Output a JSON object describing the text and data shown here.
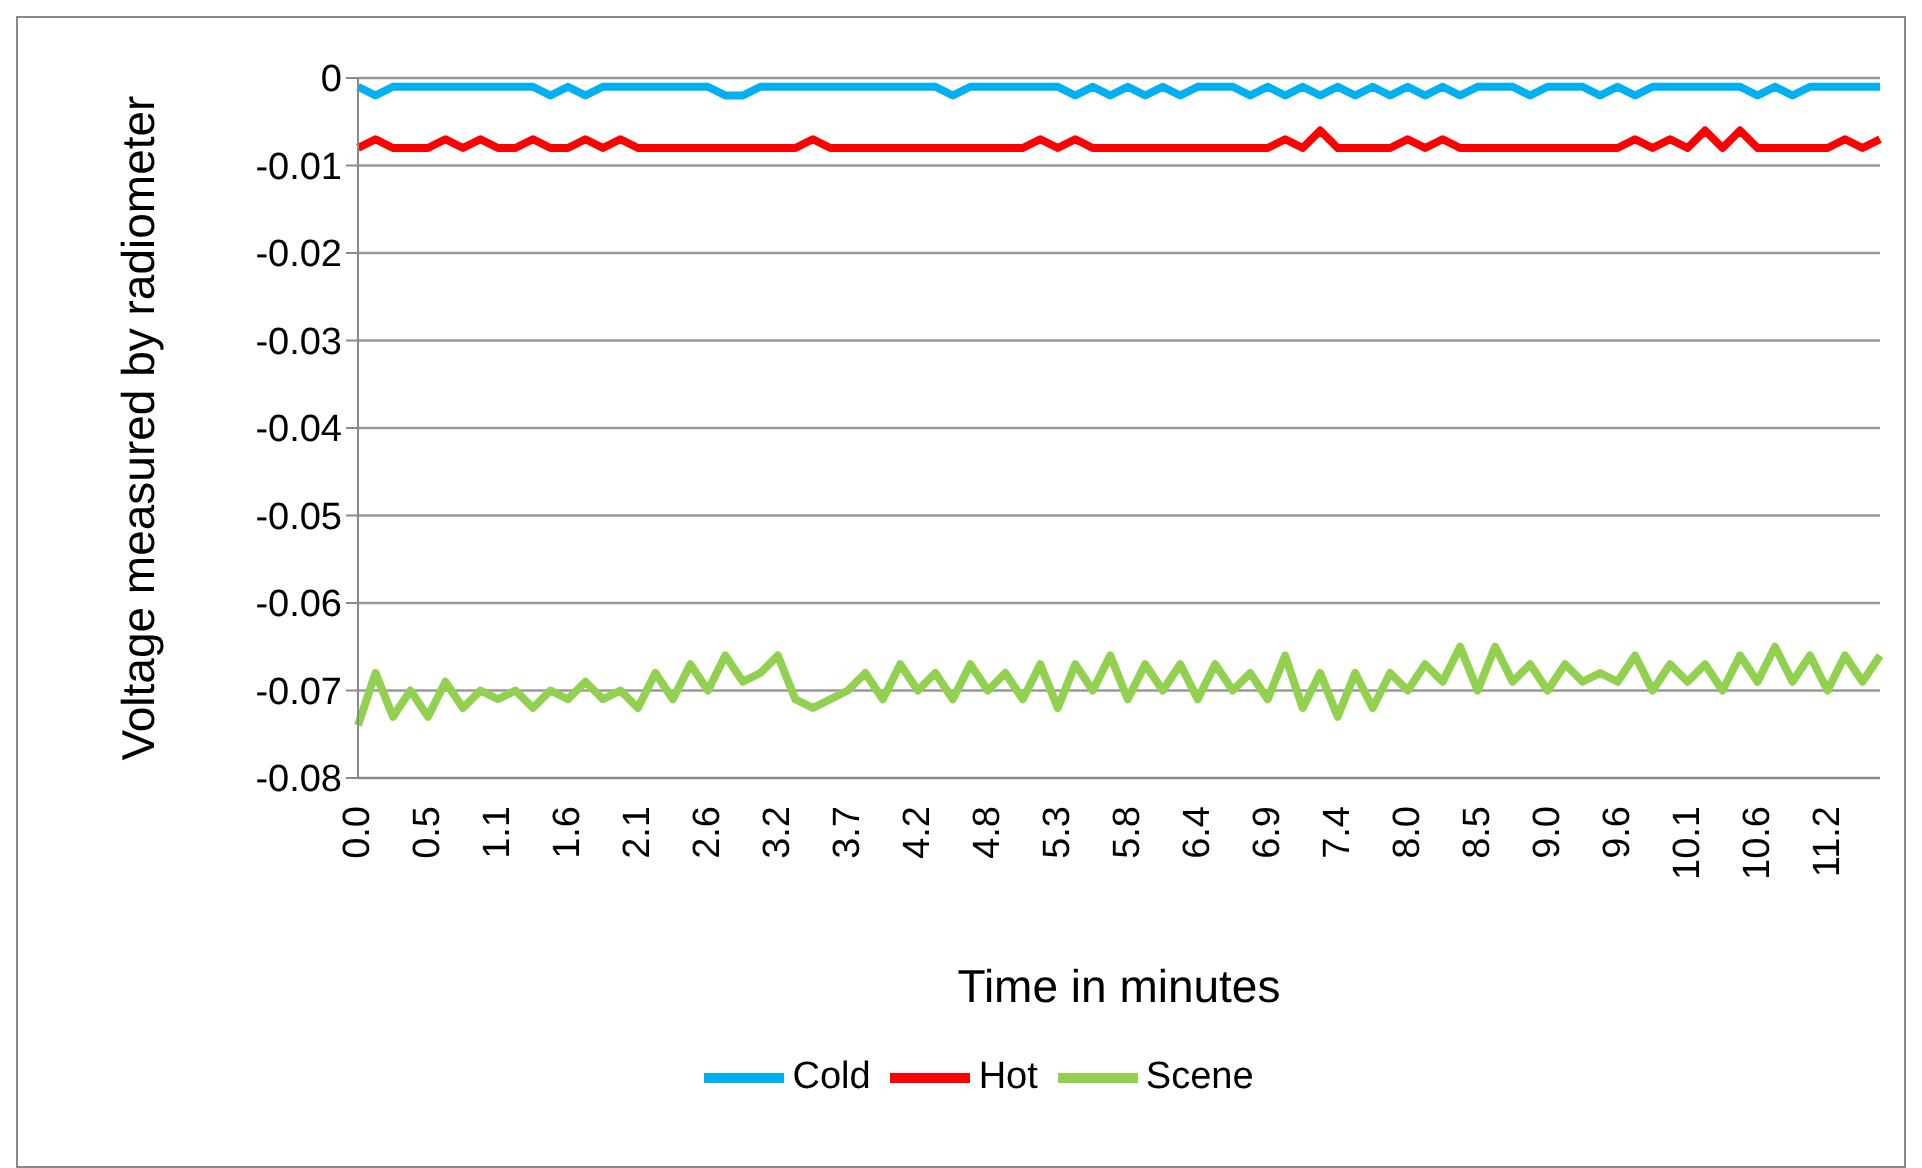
{
  "chart_data": {
    "type": "line",
    "xlabel": "Time in minutes",
    "ylabel": "Voltage measured by radiometer",
    "categories": [
      "0.0",
      null,
      null,
      null,
      "0.5",
      null,
      null,
      null,
      "1.1",
      null,
      null,
      null,
      "1.6",
      null,
      null,
      null,
      "2.1",
      null,
      null,
      null,
      "2.6",
      null,
      null,
      null,
      "3.2",
      null,
      null,
      null,
      "3.7",
      null,
      null,
      null,
      "4.2",
      null,
      null,
      null,
      "4.8",
      null,
      null,
      null,
      "5.3",
      null,
      null,
      null,
      "5.8",
      null,
      null,
      null,
      "6.4",
      null,
      null,
      null,
      "6.9",
      null,
      null,
      null,
      "7.4",
      null,
      null,
      null,
      "8.0",
      null,
      null,
      null,
      "8.5",
      null,
      null,
      null,
      "9.0",
      null,
      null,
      null,
      "9.6",
      null,
      null,
      null,
      "10.1",
      null,
      null,
      null,
      "10.6",
      null,
      null,
      null,
      "11.2",
      null,
      null,
      null
    ],
    "series": [
      {
        "name": "Hot",
        "color": "#ff0000",
        "values": [
          -0.008,
          -0.007,
          -0.008,
          -0.008,
          -0.008,
          -0.007,
          -0.008,
          -0.007,
          -0.008,
          -0.008,
          -0.007,
          -0.008,
          -0.008,
          -0.007,
          -0.008,
          -0.007,
          -0.008,
          -0.008,
          -0.008,
          -0.008,
          -0.008,
          -0.008,
          -0.008,
          -0.008,
          -0.008,
          -0.008,
          -0.007,
          -0.008,
          -0.008,
          -0.008,
          -0.008,
          -0.008,
          -0.008,
          -0.008,
          -0.008,
          -0.008,
          -0.008,
          -0.008,
          -0.008,
          -0.007,
          -0.008,
          -0.007,
          -0.008,
          -0.008,
          -0.008,
          -0.008,
          -0.008,
          -0.008,
          -0.008,
          -0.008,
          -0.008,
          -0.008,
          -0.008,
          -0.007,
          -0.008,
          -0.006,
          -0.008,
          -0.008,
          -0.008,
          -0.008,
          -0.007,
          -0.008,
          -0.007,
          -0.008,
          -0.008,
          -0.008,
          -0.008,
          -0.008,
          -0.008,
          -0.008,
          -0.008,
          -0.008,
          -0.008,
          -0.007,
          -0.008,
          -0.007,
          -0.008,
          -0.006,
          -0.008,
          -0.006,
          -0.008,
          -0.008,
          -0.008,
          -0.008,
          -0.008,
          -0.007,
          -0.008,
          -0.007
        ]
      },
      {
        "name": "Cold",
        "color": "#00b0f0",
        "values": [
          -0.001,
          -0.002,
          -0.001,
          -0.001,
          -0.001,
          -0.001,
          -0.001,
          -0.001,
          -0.001,
          -0.001,
          -0.001,
          -0.002,
          -0.001,
          -0.002,
          -0.001,
          -0.001,
          -0.001,
          -0.001,
          -0.001,
          -0.001,
          -0.001,
          -0.002,
          -0.002,
          -0.001,
          -0.001,
          -0.001,
          -0.001,
          -0.001,
          -0.001,
          -0.001,
          -0.001,
          -0.001,
          -0.001,
          -0.001,
          -0.002,
          -0.001,
          -0.001,
          -0.001,
          -0.001,
          -0.001,
          -0.001,
          -0.002,
          -0.001,
          -0.002,
          -0.001,
          -0.002,
          -0.001,
          -0.002,
          -0.001,
          -0.001,
          -0.001,
          -0.002,
          -0.001,
          -0.002,
          -0.001,
          -0.002,
          -0.001,
          -0.002,
          -0.001,
          -0.002,
          -0.001,
          -0.002,
          -0.001,
          -0.002,
          -0.001,
          -0.001,
          -0.001,
          -0.002,
          -0.001,
          -0.001,
          -0.001,
          -0.002,
          -0.001,
          -0.002,
          -0.001,
          -0.001,
          -0.001,
          -0.001,
          -0.001,
          -0.001,
          -0.002,
          -0.001,
          -0.002,
          -0.001,
          -0.001,
          -0.001,
          -0.001,
          -0.001
        ]
      },
      {
        "name": "Scene",
        "color": "#92d050",
        "values": [
          -0.074,
          -0.068,
          -0.073,
          -0.07,
          -0.073,
          -0.069,
          -0.072,
          -0.07,
          -0.071,
          -0.07,
          -0.072,
          -0.07,
          -0.071,
          -0.069,
          -0.071,
          -0.07,
          -0.072,
          -0.068,
          -0.071,
          -0.067,
          -0.07,
          -0.066,
          -0.069,
          -0.068,
          -0.066,
          -0.071,
          -0.072,
          -0.071,
          -0.07,
          -0.068,
          -0.071,
          -0.067,
          -0.07,
          -0.068,
          -0.071,
          -0.067,
          -0.07,
          -0.068,
          -0.071,
          -0.067,
          -0.072,
          -0.067,
          -0.07,
          -0.066,
          -0.071,
          -0.067,
          -0.07,
          -0.067,
          -0.071,
          -0.067,
          -0.07,
          -0.068,
          -0.071,
          -0.066,
          -0.072,
          -0.068,
          -0.073,
          -0.068,
          -0.072,
          -0.068,
          -0.07,
          -0.067,
          -0.069,
          -0.065,
          -0.07,
          -0.065,
          -0.069,
          -0.067,
          -0.07,
          -0.067,
          -0.069,
          -0.068,
          -0.069,
          -0.066,
          -0.07,
          -0.067,
          -0.069,
          -0.067,
          -0.07,
          -0.066,
          -0.069,
          -0.065,
          -0.069,
          -0.066,
          -0.07,
          -0.066,
          -0.069,
          -0.066
        ]
      }
    ],
    "ylim": [
      -0.08,
      0
    ],
    "yticks": [
      0,
      -0.01,
      -0.02,
      -0.03,
      -0.04,
      -0.05,
      -0.06,
      -0.07,
      -0.08
    ],
    "grid": "y",
    "legend": "bottom"
  }
}
